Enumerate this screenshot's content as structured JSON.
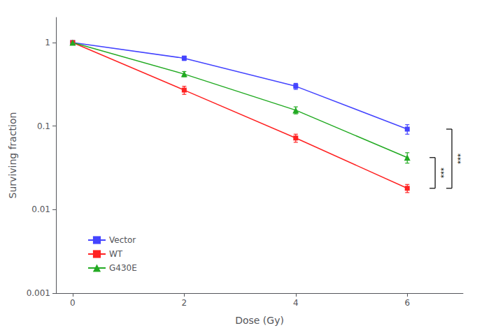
{
  "chart_data": {
    "type": "line",
    "x": [
      0,
      2,
      4,
      6
    ],
    "series": [
      {
        "name": "Vector",
        "color": "#4444ff",
        "marker": "square",
        "values": [
          1.0,
          0.65,
          0.3,
          0.092
        ],
        "errors": [
          0.015,
          0.04,
          0.025,
          0.012
        ]
      },
      {
        "name": "WT",
        "color": "#ff2222",
        "marker": "square",
        "values": [
          1.0,
          0.27,
          0.072,
          0.018
        ],
        "errors": [
          0.015,
          0.03,
          0.008,
          0.002
        ]
      },
      {
        "name": "G430E",
        "color": "#22aa22",
        "marker": "triangle",
        "values": [
          1.0,
          0.42,
          0.155,
          0.042
        ],
        "errors": [
          0.015,
          0.03,
          0.015,
          0.006
        ]
      }
    ],
    "x_label": "Dose (Gy)",
    "y_label": "Surviving fraction",
    "xlim": [
      -0.3,
      7.0
    ],
    "xticks": [
      0,
      2,
      4,
      6
    ],
    "ylim": [
      0.001,
      2.0
    ],
    "yticks": [
      0.001,
      0.01,
      0.1,
      1
    ],
    "log": "y",
    "grid": false,
    "legend": "lower left",
    "annotations": [
      {
        "text": "***",
        "x": 6,
        "from": "WT",
        "to": "G430E"
      },
      {
        "text": "***",
        "x": 6,
        "from": "WT",
        "to": "Vector"
      }
    ]
  }
}
